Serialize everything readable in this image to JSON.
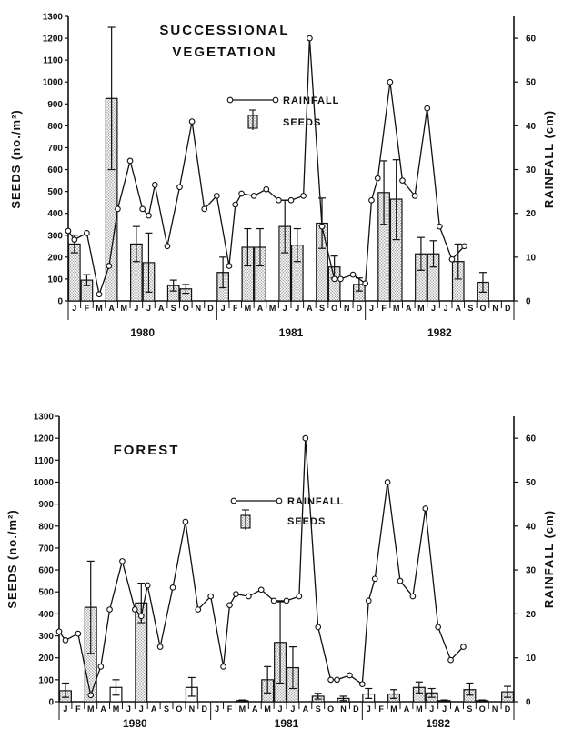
{
  "chart_data": [
    {
      "type": "bar+line",
      "title": "SUCCESSIONAL VEGETATION",
      "ylabel_left": "SEEDS (no./m²)",
      "ylabel_right": "RAINFALL (cm)",
      "ylim_left": [
        0,
        1300
      ],
      "ylim_right": [
        0,
        65
      ],
      "yticks_left": [
        "0",
        "100",
        "200",
        "300",
        "400",
        "500",
        "600",
        "700",
        "800",
        "900",
        "1000",
        "1100",
        "1200",
        "1300"
      ],
      "yticks_right": [
        "0",
        "10",
        "20",
        "30",
        "40",
        "50",
        "60"
      ],
      "months": [
        "J",
        "F",
        "M",
        "A",
        "M",
        "J",
        "J",
        "A",
        "S",
        "O",
        "N",
        "D",
        "J",
        "F",
        "M",
        "A",
        "M",
        "J",
        "J",
        "A",
        "S",
        "O",
        "N",
        "D",
        "J",
        "F",
        "M",
        "A",
        "M",
        "J",
        "J",
        "A",
        "S",
        "O",
        "N",
        "D"
      ],
      "years": [
        "1980",
        "1981",
        "1982"
      ],
      "legend": {
        "line": "RAINFALL",
        "bars": "SEEDS"
      },
      "seeds": [
        {
          "i": 0,
          "v": 260,
          "lo": 220,
          "hi": 300,
          "open": false
        },
        {
          "i": 1,
          "v": 95,
          "lo": 70,
          "hi": 120,
          "open": false
        },
        {
          "i": 3,
          "v": 925,
          "lo": 600,
          "hi": 1250,
          "open": false
        },
        {
          "i": 5,
          "v": 260,
          "lo": 180,
          "hi": 340,
          "open": false
        },
        {
          "i": 6,
          "v": 175,
          "lo": 40,
          "hi": 310,
          "open": false
        },
        {
          "i": 8,
          "v": 70,
          "lo": 45,
          "hi": 95,
          "open": false
        },
        {
          "i": 9,
          "v": 55,
          "lo": 35,
          "hi": 75,
          "open": false
        },
        {
          "i": 12,
          "v": 130,
          "lo": 60,
          "hi": 200,
          "open": false
        },
        {
          "i": 14,
          "v": 245,
          "lo": 160,
          "hi": 330,
          "open": false
        },
        {
          "i": 15,
          "v": 245,
          "lo": 160,
          "hi": 330,
          "open": false
        },
        {
          "i": 17,
          "v": 340,
          "lo": 220,
          "hi": 460,
          "open": false
        },
        {
          "i": 18,
          "v": 255,
          "lo": 180,
          "hi": 330,
          "open": false
        },
        {
          "i": 20,
          "v": 355,
          "lo": 240,
          "hi": 470,
          "open": false
        },
        {
          "i": 21,
          "v": 155,
          "lo": 105,
          "hi": 205,
          "open": false
        },
        {
          "i": 23,
          "v": 75,
          "lo": 45,
          "hi": 105,
          "open": false
        },
        {
          "i": 25,
          "v": 495,
          "lo": 350,
          "hi": 640,
          "open": false
        },
        {
          "i": 26,
          "v": 465,
          "lo": 280,
          "hi": 645,
          "open": false
        },
        {
          "i": 28,
          "v": 215,
          "lo": 140,
          "hi": 290,
          "open": false
        },
        {
          "i": 29,
          "v": 215,
          "lo": 155,
          "hi": 275,
          "open": false
        },
        {
          "i": 31,
          "v": 180,
          "lo": 100,
          "hi": 260,
          "open": false
        },
        {
          "i": 33,
          "v": 85,
          "lo": 40,
          "hi": 130,
          "open": false
        }
      ],
      "rainfall": [
        [
          -0.5,
          16
        ],
        [
          0,
          14
        ],
        [
          1,
          15.5
        ],
        [
          2,
          1.5
        ],
        [
          2.8,
          8
        ],
        [
          3.5,
          21
        ],
        [
          4.5,
          32
        ],
        [
          5.5,
          21
        ],
        [
          6,
          19.5
        ],
        [
          6.5,
          26.5
        ],
        [
          7.5,
          12.5
        ],
        [
          8.5,
          26
        ],
        [
          9.5,
          41
        ],
        [
          10.5,
          21
        ],
        [
          11.5,
          24
        ],
        [
          12.5,
          8
        ],
        [
          13,
          22
        ],
        [
          13.5,
          24.5
        ],
        [
          14.5,
          24
        ],
        [
          15.5,
          25.5
        ],
        [
          16.5,
          23
        ],
        [
          17.5,
          23
        ],
        [
          18.5,
          24
        ],
        [
          19,
          60
        ],
        [
          20,
          17
        ],
        [
          21,
          5
        ],
        [
          21.5,
          5
        ],
        [
          22.5,
          6
        ],
        [
          23.5,
          4
        ],
        [
          24,
          23
        ],
        [
          24.5,
          28
        ],
        [
          25.5,
          50
        ],
        [
          26.5,
          27.5
        ],
        [
          27.5,
          24
        ],
        [
          28.5,
          44
        ],
        [
          29.5,
          17
        ],
        [
          30.5,
          9.5
        ],
        [
          31.5,
          12.5
        ]
      ]
    },
    {
      "type": "bar+line",
      "title": "FOREST",
      "ylabel_left": "SEEDS (no./m²)",
      "ylabel_right": "RAINFALL (cm)",
      "ylim_left": [
        0,
        1300
      ],
      "ylim_right": [
        0,
        65
      ],
      "yticks_left": [
        "0",
        "100",
        "200",
        "300",
        "400",
        "500",
        "600",
        "700",
        "800",
        "900",
        "1000",
        "1100",
        "1200",
        "1300"
      ],
      "yticks_right": [
        "0",
        "10",
        "20",
        "30",
        "40",
        "50",
        "60"
      ],
      "months": [
        "J",
        "F",
        "M",
        "A",
        "M",
        "J",
        "J",
        "A",
        "S",
        "O",
        "N",
        "D",
        "J",
        "F",
        "M",
        "A",
        "M",
        "J",
        "J",
        "A",
        "S",
        "O",
        "N",
        "D",
        "J",
        "F",
        "M",
        "A",
        "M",
        "J",
        "J",
        "A",
        "S",
        "O",
        "N",
        "D"
      ],
      "years": [
        "1980",
        "1981",
        "1982"
      ],
      "legend": {
        "line": "RAINFALL",
        "bars": "SEEDS"
      },
      "seeds": [
        {
          "i": 0,
          "v": 50,
          "lo": 20,
          "hi": 85,
          "open": false
        },
        {
          "i": 2,
          "v": 430,
          "lo": 220,
          "hi": 640,
          "open": false
        },
        {
          "i": 4,
          "v": 65,
          "lo": 30,
          "hi": 100,
          "open": true
        },
        {
          "i": 6,
          "v": 450,
          "lo": 360,
          "hi": 540,
          "open": false
        },
        {
          "i": 10,
          "v": 65,
          "lo": 25,
          "hi": 110,
          "open": true
        },
        {
          "i": 14,
          "v": 5,
          "lo": 2,
          "hi": 8,
          "open": true
        },
        {
          "i": 16,
          "v": 100,
          "lo": 40,
          "hi": 160,
          "open": false
        },
        {
          "i": 17,
          "v": 270,
          "lo": 85,
          "hi": 455,
          "open": false
        },
        {
          "i": 18,
          "v": 155,
          "lo": 60,
          "hi": 250,
          "open": false
        },
        {
          "i": 20,
          "v": 25,
          "lo": 12,
          "hi": 38,
          "open": false
        },
        {
          "i": 22,
          "v": 15,
          "lo": 5,
          "hi": 25,
          "open": false
        },
        {
          "i": 24,
          "v": 35,
          "lo": 15,
          "hi": 60,
          "open": true
        },
        {
          "i": 26,
          "v": 35,
          "lo": 15,
          "hi": 55,
          "open": false
        },
        {
          "i": 28,
          "v": 65,
          "lo": 40,
          "hi": 90,
          "open": false
        },
        {
          "i": 29,
          "v": 40,
          "lo": 20,
          "hi": 60,
          "open": false
        },
        {
          "i": 30,
          "v": 5,
          "lo": 2,
          "hi": 8,
          "open": false
        },
        {
          "i": 32,
          "v": 55,
          "lo": 30,
          "hi": 85,
          "open": false
        },
        {
          "i": 33,
          "v": 5,
          "lo": 2,
          "hi": 8,
          "open": false
        },
        {
          "i": 35,
          "v": 45,
          "lo": 20,
          "hi": 70,
          "open": false
        }
      ],
      "rainfall": [
        [
          -0.5,
          16
        ],
        [
          0,
          14
        ],
        [
          1,
          15.5
        ],
        [
          2,
          1.5
        ],
        [
          2.8,
          8
        ],
        [
          3.5,
          21
        ],
        [
          4.5,
          32
        ],
        [
          5.5,
          21
        ],
        [
          6,
          19.5
        ],
        [
          6.5,
          26.5
        ],
        [
          7.5,
          12.5
        ],
        [
          8.5,
          26
        ],
        [
          9.5,
          41
        ],
        [
          10.5,
          21
        ],
        [
          11.5,
          24
        ],
        [
          12.5,
          8
        ],
        [
          13,
          22
        ],
        [
          13.5,
          24.5
        ],
        [
          14.5,
          24
        ],
        [
          15.5,
          25.5
        ],
        [
          16.5,
          23
        ],
        [
          17.5,
          23
        ],
        [
          18.5,
          24
        ],
        [
          19,
          60
        ],
        [
          20,
          17
        ],
        [
          21,
          5
        ],
        [
          21.5,
          5
        ],
        [
          22.5,
          6
        ],
        [
          23.5,
          4
        ],
        [
          24,
          23
        ],
        [
          24.5,
          28
        ],
        [
          25.5,
          50
        ],
        [
          26.5,
          27.5
        ],
        [
          27.5,
          24
        ],
        [
          28.5,
          44
        ],
        [
          29.5,
          17
        ],
        [
          30.5,
          9.5
        ],
        [
          31.5,
          12.5
        ]
      ]
    }
  ]
}
